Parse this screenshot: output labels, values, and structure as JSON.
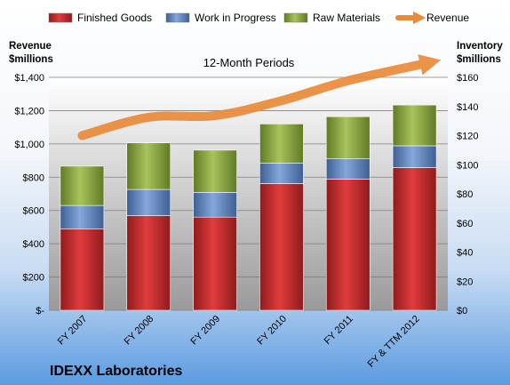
{
  "chart_data": {
    "type": "bar",
    "stacked": true,
    "title": "IDEXX Laboratories",
    "subtitle": "12-Month Periods",
    "categories": [
      "FY 2007",
      "FY 2008",
      "FY 2009",
      "FY 2010",
      "FY 2011",
      "FY & TTM 2012"
    ],
    "series": [
      {
        "name": "Finished Goods",
        "color": "#c0282a",
        "values": [
          56,
          65,
          64,
          87,
          90,
          98
        ]
      },
      {
        "name": "Work in Progress",
        "color": "#5f86c4",
        "values": [
          16,
          18,
          17,
          14,
          14,
          15
        ]
      },
      {
        "name": "Raw Materials",
        "color": "#8aa843",
        "values": [
          27,
          32,
          29,
          27,
          29,
          28
        ]
      }
    ],
    "line_series": {
      "name": "Revenue",
      "color": "#e98b3a",
      "values": [
        1050,
        1160,
        1170,
        1260,
        1380,
        1490
      ]
    },
    "ylabel_left": "Revenue $millions",
    "ylabel_right": "Inventory $millions",
    "ylim_left": [
      0,
      1400
    ],
    "ylim_right": [
      0,
      160
    ],
    "left_ticks": [
      "$-",
      "$200",
      "$400",
      "$600",
      "$800",
      "$1,000",
      "$1,200",
      "$1,400"
    ],
    "right_ticks": [
      "$0",
      "$20",
      "$40",
      "$60",
      "$80",
      "$100",
      "$120",
      "$140",
      "$160"
    ],
    "legend_position": "top",
    "grid": true
  }
}
